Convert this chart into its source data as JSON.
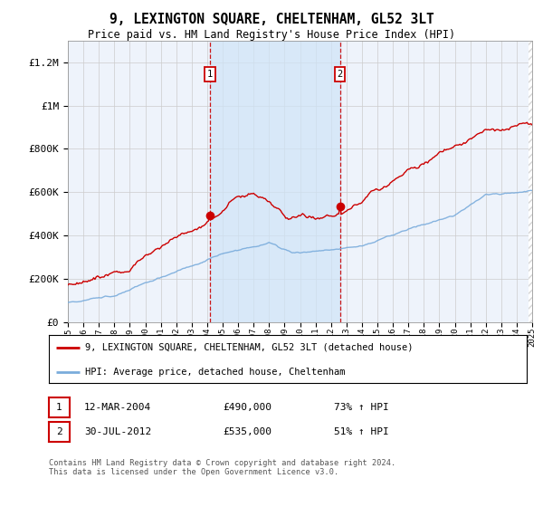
{
  "title": "9, LEXINGTON SQUARE, CHELTENHAM, GL52 3LT",
  "subtitle": "Price paid vs. HM Land Registry's House Price Index (HPI)",
  "ylim": [
    0,
    1300000
  ],
  "yticks": [
    0,
    200000,
    400000,
    600000,
    800000,
    1000000,
    1200000
  ],
  "ytick_labels": [
    "£0",
    "£200K",
    "£400K",
    "£600K",
    "£800K",
    "£1M",
    "£1.2M"
  ],
  "x_start_year": 1995,
  "x_end_year": 2025,
  "hpi_color": "#7aacdc",
  "price_color": "#cc0000",
  "sale1_date": 2004.19,
  "sale1_price": 490000,
  "sale2_date": 2012.58,
  "sale2_price": 535000,
  "legend_line1": "9, LEXINGTON SQUARE, CHELTENHAM, GL52 3LT (detached house)",
  "legend_line2": "HPI: Average price, detached house, Cheltenham",
  "table_row1_num": "1",
  "table_row1_date": "12-MAR-2004",
  "table_row1_price": "£490,000",
  "table_row1_hpi": "73% ↑ HPI",
  "table_row2_num": "2",
  "table_row2_date": "30-JUL-2012",
  "table_row2_price": "£535,000",
  "table_row2_hpi": "51% ↑ HPI",
  "footnote": "Contains HM Land Registry data © Crown copyright and database right 2024.\nThis data is licensed under the Open Government Licence v3.0.",
  "bg_color": "#ffffff",
  "plot_bg_color": "#eef3fb",
  "grid_color": "#cccccc",
  "hatch_color": "#bbbbbb",
  "shade_color": "#d0e4f7"
}
